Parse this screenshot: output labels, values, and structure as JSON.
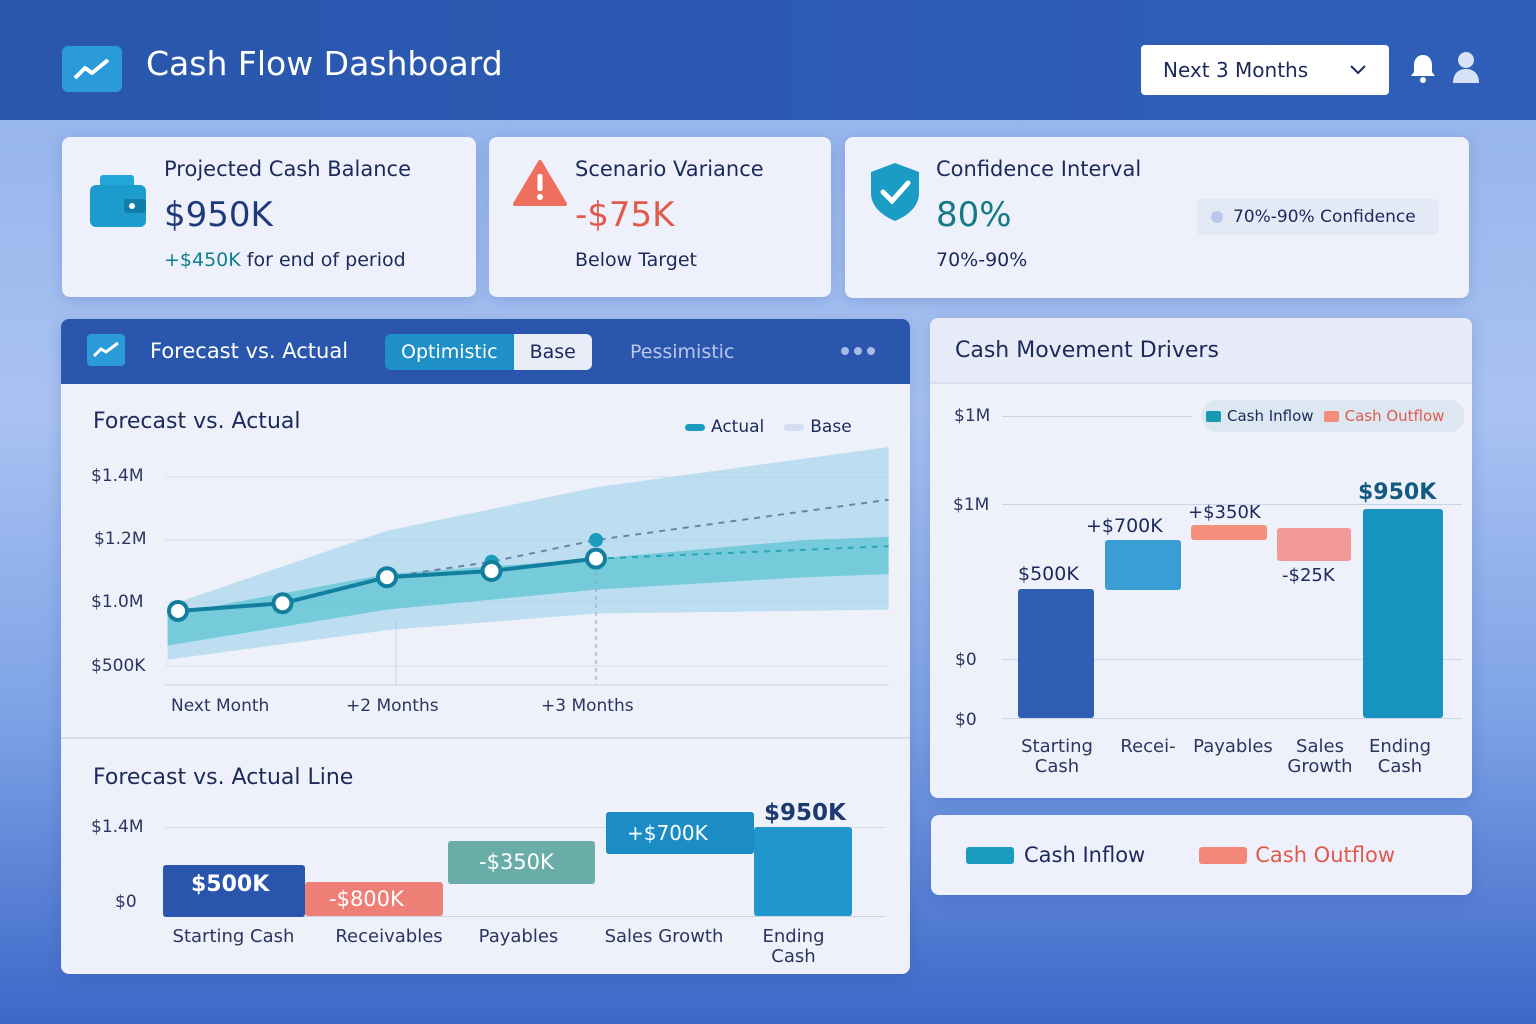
{
  "header": {
    "title": "Cash Flow Dashboard",
    "period_select": "Next 3 Months",
    "icons": [
      "trend-line-icon",
      "bell-icon",
      "user-icon",
      "chevron-down-icon"
    ]
  },
  "kpis": [
    {
      "title": "Projected Cash Balance",
      "value": "$950K",
      "delta": "+$450K",
      "sub": "for end of period",
      "icon": "wallet-icon"
    },
    {
      "title": "Scenario Variance",
      "value": "-$75K",
      "sub": "Below Target",
      "icon": "warning-icon"
    },
    {
      "title": "Confidence Interval",
      "value": "80%",
      "sub": "70%-90%",
      "badge": "70%-90% Confidence",
      "icon": "shield-check-icon"
    }
  ],
  "forecast_panel": {
    "title": "Forecast vs. Actual",
    "tabs": [
      "Optimistic",
      "Base",
      "Pessimistic"
    ],
    "active_tab": "Base"
  },
  "colors": {
    "inflow": "#1a9cbf",
    "outflow": "#f08a7c",
    "start": "#2a5bb0",
    "header": "#2a56ad"
  },
  "chart_data": [
    {
      "type": "line",
      "title": "Forecast vs. Actual",
      "legend": [
        "Actual",
        "Base"
      ],
      "legend_position": "top-right",
      "y_ticks": [
        "$1.4M",
        "$1.2M",
        "$1.0M",
        "$500K"
      ],
      "x_ticks": [
        "Next Month",
        "+2 Months",
        "+3 Months"
      ],
      "grid": true,
      "series": [
        {
          "name": "Actual",
          "x": [
            1,
            1.5,
            2,
            2.5,
            3
          ],
          "y": [
            0.93,
            0.99,
            1.08,
            1.1,
            1.14
          ]
        },
        {
          "name": "Base",
          "x": [
            2,
            2.5,
            3,
            4.4
          ],
          "y": [
            1.08,
            1.13,
            1.2,
            1.33
          ]
        },
        {
          "x": [
            3,
            4.4
          ],
          "y": [
            1.14,
            1.18
          ]
        }
      ],
      "bands": [
        {
          "x": [
            0.95,
            2,
            3,
            4.4
          ],
          "upper": [
            0.97,
            1.23,
            1.37,
            1.5
          ],
          "lower": [
            0.55,
            0.78,
            0.91,
            0.94
          ]
        },
        {
          "x": [
            0.95,
            2,
            3,
            4,
            4.4
          ],
          "upper": [
            0.9,
            1.09,
            1.14,
            1.2,
            1.21
          ],
          "lower": [
            0.66,
            0.94,
            1.04,
            1.08,
            1.09
          ]
        }
      ]
    },
    {
      "type": "bar",
      "title": "Forecast vs. Actual Line",
      "y_ticks": [
        "$1.4M",
        "$0"
      ],
      "categories": [
        "Starting Cash",
        "Receivables",
        "Payables",
        "Sales Growth",
        "Ending Cash"
      ],
      "labels": [
        "$500K",
        "-$800K",
        "-$350K",
        "+$700K",
        "$950K"
      ]
    },
    {
      "type": "bar",
      "title": "Cash Movement Drivers",
      "y_ticks": [
        "$1M",
        "$1M",
        "$0",
        "$0"
      ],
      "legend": [
        "Cash Inflow",
        "Cash Outflow"
      ],
      "legend_position": "top-right",
      "categories": [
        "Starting Cash",
        "Recei-",
        "Payables",
        "Sales Growth",
        "Ending Cash"
      ],
      "labels": [
        "$500K",
        "+$700K",
        "+$350K",
        "-$25K",
        "$950K"
      ]
    }
  ],
  "legend_panel": {
    "inflow": "Cash Inflow",
    "outflow": "Cash Outflow"
  }
}
